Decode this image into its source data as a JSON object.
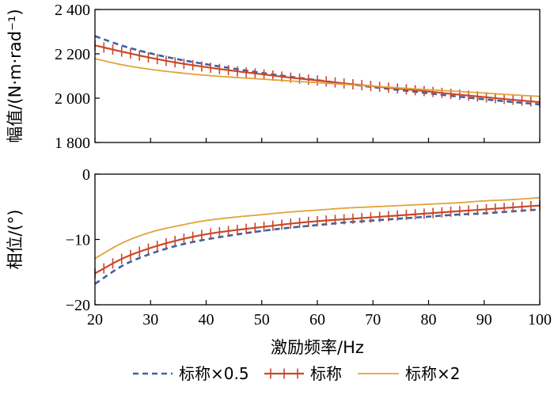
{
  "chart_data": [
    {
      "type": "line",
      "panel": "top",
      "ylabel": "幅值/(N·m·rad⁻¹)",
      "ylim": [
        1800,
        2400
      ],
      "yticks": [
        1800,
        2000,
        2200,
        2400
      ],
      "ytick_labels": [
        "1 800",
        "2 000",
        "2 200",
        "2 400"
      ],
      "xlim": [
        20,
        100
      ],
      "grid": false,
      "series": [
        {
          "name": "标称×0.5",
          "x": [
            20,
            25,
            30,
            35,
            40,
            45,
            50,
            55,
            60,
            65,
            70,
            75,
            80,
            85,
            90,
            95,
            100
          ],
          "y": [
            2280,
            2236,
            2202,
            2175,
            2153,
            2133,
            2114,
            2097,
            2081,
            2065,
            2050,
            2036,
            2022,
            2008,
            1995,
            1983,
            1972
          ]
        },
        {
          "name": "标称",
          "x": [
            20,
            25,
            30,
            35,
            40,
            45,
            50,
            55,
            60,
            65,
            70,
            75,
            80,
            85,
            90,
            95,
            100
          ],
          "y": [
            2238,
            2209,
            2182,
            2159,
            2140,
            2123,
            2108,
            2093,
            2080,
            2066,
            2054,
            2042,
            2030,
            2017,
            2005,
            1993,
            1982
          ]
        },
        {
          "name": "标称×2",
          "x": [
            20,
            25,
            30,
            35,
            40,
            45,
            50,
            55,
            60,
            65,
            70,
            75,
            80,
            85,
            90,
            95,
            100
          ],
          "y": [
            2178,
            2150,
            2130,
            2115,
            2103,
            2094,
            2086,
            2078,
            2070,
            2062,
            2054,
            2046,
            2038,
            2031,
            2023,
            2015,
            2008
          ]
        }
      ]
    },
    {
      "type": "line",
      "panel": "bottom",
      "ylabel": "相位/(°)",
      "xlabel": "激励频率/Hz",
      "ylim": [
        -20,
        0
      ],
      "yticks": [
        -20,
        -10,
        0
      ],
      "ytick_labels": [
        "−20",
        "−10",
        "0"
      ],
      "xlim": [
        20,
        100
      ],
      "xticks": [
        20,
        30,
        40,
        50,
        60,
        70,
        80,
        90,
        100
      ],
      "xtick_labels": [
        "20",
        "30",
        "40",
        "50",
        "60",
        "70",
        "80",
        "90",
        "100"
      ],
      "grid": false,
      "series": [
        {
          "name": "标称×0.5",
          "x": [
            20,
            25,
            30,
            35,
            40,
            45,
            50,
            55,
            60,
            65,
            70,
            75,
            80,
            85,
            90,
            95,
            100
          ],
          "y": [
            -16.8,
            -14.0,
            -12.2,
            -10.9,
            -10.0,
            -9.3,
            -8.7,
            -8.2,
            -7.8,
            -7.4,
            -7.1,
            -6.8,
            -6.5,
            -6.2,
            -6.0,
            -5.7,
            -5.4
          ]
        },
        {
          "name": "标称",
          "x": [
            20,
            25,
            30,
            35,
            40,
            45,
            50,
            55,
            60,
            65,
            70,
            75,
            80,
            85,
            90,
            95,
            100
          ],
          "y": [
            -15.2,
            -12.9,
            -11.3,
            -10.1,
            -9.2,
            -8.6,
            -8.1,
            -7.6,
            -7.2,
            -6.9,
            -6.6,
            -6.3,
            -6.0,
            -5.7,
            -5.4,
            -5.1,
            -4.8
          ]
        },
        {
          "name": "标称×2",
          "x": [
            20,
            25,
            30,
            35,
            40,
            45,
            50,
            55,
            60,
            65,
            70,
            75,
            80,
            85,
            90,
            95,
            100
          ],
          "y": [
            -12.9,
            -10.5,
            -8.9,
            -7.9,
            -7.1,
            -6.6,
            -6.2,
            -5.8,
            -5.5,
            -5.2,
            -5.0,
            -4.8,
            -4.6,
            -4.4,
            -4.1,
            -3.9,
            -3.6
          ]
        }
      ]
    }
  ],
  "legend": {
    "position": "bottom",
    "items": [
      {
        "label": "标称×0.5",
        "style": "dashed",
        "color": "#3a62a8"
      },
      {
        "label": "标称",
        "style": "solid-plus",
        "color": "#c8492c"
      },
      {
        "label": "标称×2",
        "style": "solid",
        "color": "#e3a33a"
      }
    ]
  },
  "colors": {
    "half": "#3a62a8",
    "nominal": "#c8492c",
    "double": "#e3a33a",
    "axis": "#000000"
  }
}
